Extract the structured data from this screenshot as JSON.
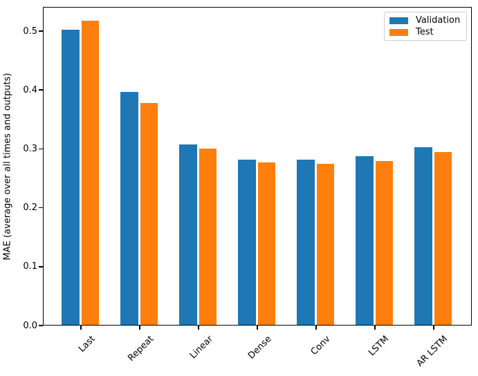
{
  "figure": {
    "background": "#ffffff",
    "text_color": "#000000"
  },
  "chart_data": {
    "type": "bar",
    "title": "",
    "xlabel": "",
    "ylabel": "MAE (average over all times and outputs)",
    "categories": [
      "Last",
      "Repeat",
      "Linear",
      "Dense",
      "Conv",
      "LSTM",
      "AR LSTM"
    ],
    "series": [
      {
        "name": "Validation",
        "color": "#1f77b4",
        "values": [
          0.501,
          0.395,
          0.306,
          0.281,
          0.28,
          0.286,
          0.302
        ]
      },
      {
        "name": "Test",
        "color": "#ff7f0e",
        "values": [
          0.516,
          0.377,
          0.299,
          0.276,
          0.274,
          0.278,
          0.294
        ]
      }
    ],
    "ylim": [
      0,
      0.541
    ],
    "yticks": [
      0.0,
      0.1,
      0.2,
      0.3,
      0.4,
      0.5
    ],
    "ytick_labels": [
      "0.0",
      "0.1",
      "0.2",
      "0.3",
      "0.4",
      "0.5"
    ],
    "xtick_rotation": 45,
    "grid": false,
    "legend_position": "upper right",
    "bar_width_units": 0.3,
    "bar_offset_units": 0.17
  }
}
